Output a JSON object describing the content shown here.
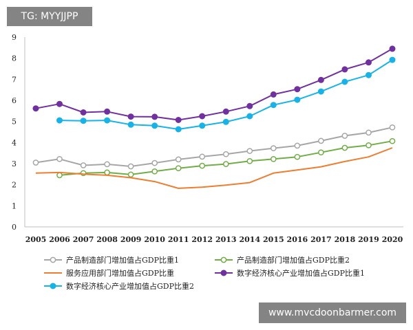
{
  "watermarks": {
    "top_left": "TG: MYYJJPP",
    "bottom_right": "www.mvcdoonbarmer.com"
  },
  "chart_data": {
    "type": "line",
    "title": "",
    "xlabel": "",
    "ylabel": "",
    "x": [
      "2005",
      "2006",
      "2007",
      "2008",
      "2009",
      "2010",
      "2011",
      "2012",
      "2013",
      "2014",
      "2015",
      "2016",
      "2017",
      "2018",
      "2019",
      "2020"
    ],
    "ylim": [
      0,
      9
    ],
    "yticks": [
      0,
      1,
      2,
      3,
      4,
      5,
      6,
      7,
      8,
      9
    ],
    "grid": false,
    "legend_position": "bottom",
    "series": [
      {
        "name": "产品制造部门增加值占GDP比重1",
        "color": "#a6a6a6",
        "marker": "hollow-circle",
        "values": [
          3.05,
          3.22,
          2.92,
          2.97,
          2.87,
          3.03,
          3.2,
          3.33,
          3.45,
          3.6,
          3.73,
          3.85,
          4.08,
          4.32,
          4.47,
          4.72
        ]
      },
      {
        "name": "产品制造部门增加值占GDP比重2",
        "color": "#70ad47",
        "marker": "hollow-circle",
        "values": [
          null,
          2.45,
          2.55,
          2.58,
          2.48,
          2.63,
          2.78,
          2.9,
          2.98,
          3.12,
          3.22,
          3.32,
          3.53,
          3.75,
          3.87,
          4.07
        ]
      },
      {
        "name": "服务应用部门增加值占GDP比重",
        "color": "#ed7d31",
        "marker": "none",
        "values": [
          2.55,
          2.58,
          2.5,
          2.45,
          2.33,
          2.15,
          1.83,
          1.88,
          1.98,
          2.1,
          2.55,
          2.7,
          2.85,
          3.1,
          3.32,
          3.75
        ]
      },
      {
        "name": "数字经济核心产业增加值占GDP比重1",
        "color": "#7030a0",
        "marker": "filled-circle",
        "values": [
          5.62,
          5.83,
          5.43,
          5.47,
          5.23,
          5.22,
          5.07,
          5.25,
          5.47,
          5.73,
          6.28,
          6.53,
          6.97,
          7.47,
          7.8,
          8.45
        ]
      },
      {
        "name": "数字经济核心产业增加值占GDP比重2",
        "color": "#17b3e8",
        "marker": "filled-circle",
        "values": [
          null,
          5.05,
          5.03,
          5.05,
          4.85,
          4.8,
          4.63,
          4.8,
          4.98,
          5.25,
          5.78,
          6.03,
          6.42,
          6.88,
          7.2,
          7.92
        ]
      }
    ]
  }
}
